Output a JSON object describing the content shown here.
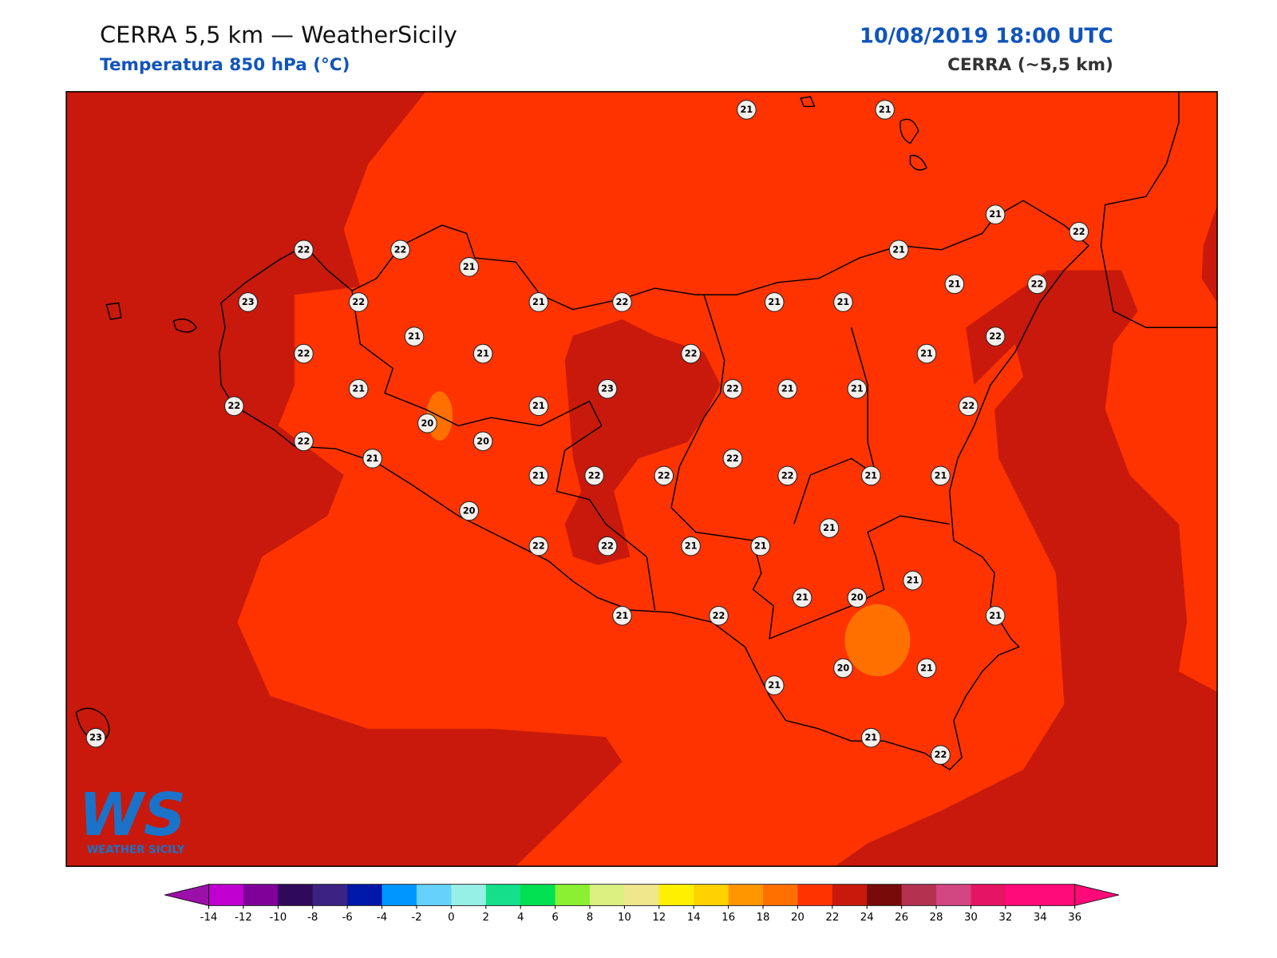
{
  "header": {
    "title": "CERRA 5,5 km — WeatherSicily",
    "subtitle": "Temperatura 850 hPa (°C)",
    "datetime": "10/08/2019 18:00 UTC",
    "model": "CERRA (~5,5 km)"
  },
  "logo": {
    "mark": "WS",
    "name": "WEATHER SICILY"
  },
  "stations": [
    21,
    21,
    21,
    22,
    22,
    22,
    21,
    21,
    21,
    22,
    23,
    22,
    21,
    22,
    21,
    21,
    21,
    22,
    21,
    22,
    21,
    22,
    21,
    23,
    22,
    21,
    21,
    22,
    21,
    22,
    20,
    20,
    22,
    21,
    22,
    21,
    22,
    22,
    22,
    21,
    21,
    20,
    21,
    22,
    22,
    21,
    21,
    21,
    21,
    20,
    21,
    22,
    21,
    20,
    21,
    21,
    21,
    22,
    23
  ],
  "colorbar": {
    "ticks": [
      -14,
      -12,
      -10,
      -8,
      -6,
      -4,
      -2,
      0,
      2,
      4,
      6,
      8,
      10,
      12,
      14,
      16,
      18,
      20,
      22,
      24,
      26,
      28,
      30,
      32,
      34,
      36
    ],
    "colors": [
      "#c000d0",
      "#80009a",
      "#300a5a",
      "#3c2282",
      "#0018a8",
      "#0096ff",
      "#64d2fa",
      "#96f0e6",
      "#14e08c",
      "#00e050",
      "#8cf032",
      "#dcf082",
      "#f0e68c",
      "#fff000",
      "#ffd200",
      "#ff9600",
      "#ff7000",
      "#ff3300",
      "#c8190c",
      "#780a0a",
      "#b43250",
      "#d24682",
      "#e61464",
      "#ff0a78",
      "#ff0a78"
    ],
    "extend_colors": [
      "#9b10a8",
      "#ff0a78"
    ]
  }
}
